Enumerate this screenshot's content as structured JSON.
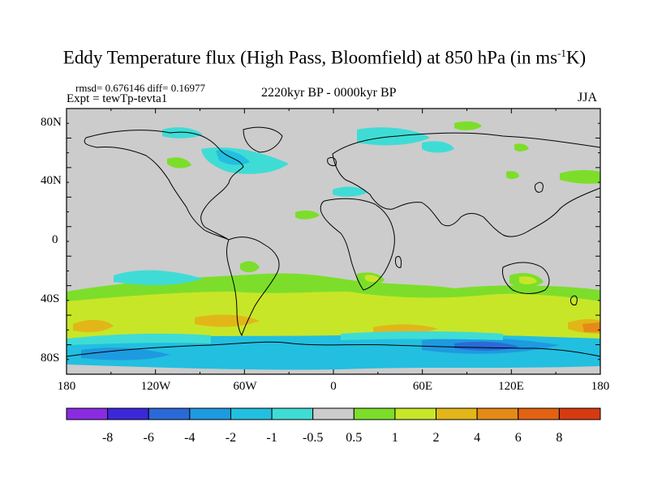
{
  "header": {
    "title_main": "Eddy Temperature flux (High Pass, Bloomfield) at 850 hPa (in ms",
    "title_sup": "-1",
    "title_end": "K)",
    "stats": "rmsd= 0.676146 diff= 0.16977",
    "expt": "Expt = tewTp-tevta1",
    "period": "2220kyr BP - 0000kyr BP",
    "season": "JJA"
  },
  "axes": {
    "lat_labels": [
      "80N",
      "40N",
      "0",
      "40S",
      "80S"
    ],
    "lon_labels": [
      "180",
      "120W",
      "60W",
      "0",
      "60E",
      "120E",
      "180"
    ]
  },
  "colorbar": {
    "labels": [
      "-8",
      "-6",
      "-4",
      "-2",
      "-1",
      "-0.5",
      "0.5",
      "1",
      "2",
      "4",
      "6",
      "8"
    ],
    "colors": [
      "#8a2be2",
      "#3c28d8",
      "#2a6ad8",
      "#1e9ae0",
      "#22bfe0",
      "#3fdcd6",
      "#cccccc",
      "#7cde2a",
      "#c8e628",
      "#e2b618",
      "#e58a16",
      "#e26212",
      "#d83a10"
    ]
  }
}
